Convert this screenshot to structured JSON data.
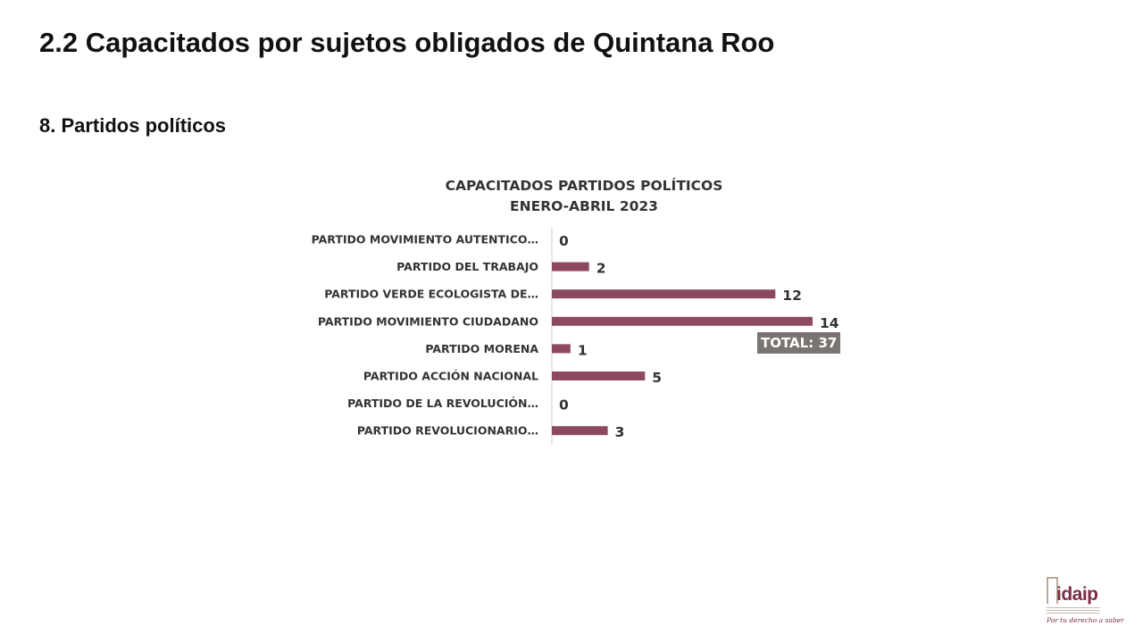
{
  "header": {
    "title": "2.2 Capacitados por sujetos obligados de Quintana Roo",
    "section": "8. Partidos políticos"
  },
  "chart_data": {
    "type": "bar",
    "orientation": "horizontal",
    "title_line1": "CAPACITADOS PARTIDOS POLÍTICOS",
    "title_line2": "ENERO-ABRIL 2023",
    "categories": [
      "PARTIDO MOVIMIENTO AUTENTICO…",
      "PARTIDO DEL TRABAJO",
      "PARTIDO VERDE ECOLOGISTA DE…",
      "PARTIDO MOVIMIENTO CIUDADANO",
      "PARTIDO MORENA",
      "PARTIDO ACCIÓN NACIONAL",
      "PARTIDO DE LA REVOLUCIÓN…",
      "PARTIDO REVOLUCIONARIO…"
    ],
    "values": [
      0,
      2,
      12,
      14,
      1,
      5,
      0,
      3
    ],
    "xlim": [
      0,
      14
    ],
    "bar_color": "#8d4a5e",
    "grid": false,
    "legend": "none",
    "annotation": "TOTAL: 37"
  },
  "logo": {
    "text": "idaip",
    "slogan": "Por tu derecho a saber"
  },
  "colors": {
    "bar": "#8d4a5e",
    "badge": "#7a7472",
    "text": "#333333",
    "brand": "#7b2d44"
  }
}
